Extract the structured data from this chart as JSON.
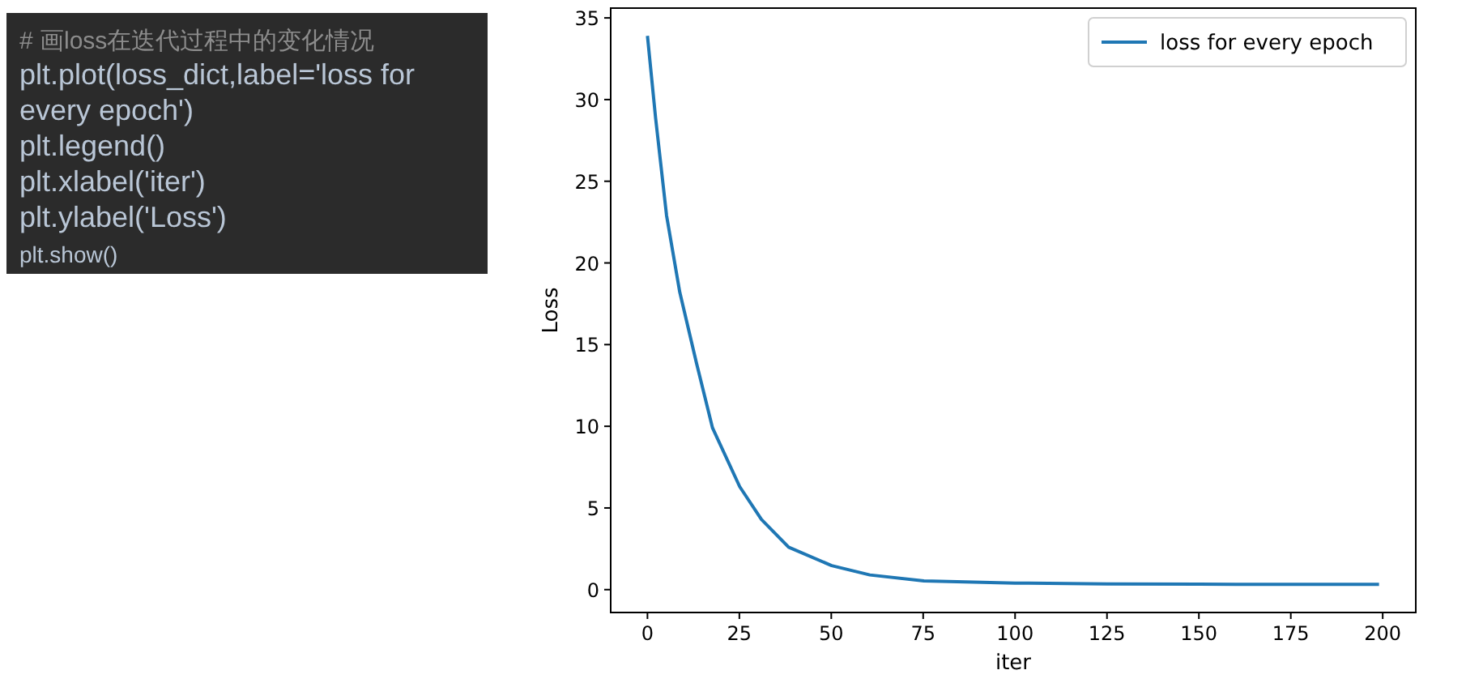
{
  "chart_data": [
    {
      "type": "other",
      "annotations": [
        "# 画loss在迭代过程中的变化情况",
        "plt.plot(loss_dict,label='loss for",
        "every epoch')",
        "plt.legend()",
        "plt.xlabel('iter')",
        "plt.ylabel('Loss')",
        "plt.show()"
      ]
    },
    {
      "type": "line",
      "xlabel": "iter",
      "ylabel": "Loss",
      "xlim": [
        -10,
        209
      ],
      "ylim": [
        -1.4,
        35.6
      ],
      "xticks": [
        0,
        25,
        50,
        75,
        100,
        125,
        150,
        175,
        200
      ],
      "yticks": [
        0,
        5,
        10,
        15,
        20,
        25,
        30,
        35
      ],
      "grid": false,
      "legend": "top right",
      "marker": "none",
      "line_style": "solid",
      "series": [
        {
          "name": "loss for every epoch",
          "color": "#1f77b4",
          "x": [
            0,
            2.2,
            5.2,
            8.8,
            13.3,
            17.7,
            25.1,
            31,
            38.4,
            50.1,
            60.5,
            75.2,
            100,
            125,
            150,
            175,
            199
          ],
          "values": [
            33.9,
            28.9,
            22.9,
            18.2,
            13.9,
            9.9,
            6.3,
            4.3,
            2.6,
            1.47,
            0.9,
            0.53,
            0.4,
            0.35,
            0.33,
            0.32,
            0.32
          ]
        }
      ]
    }
  ]
}
